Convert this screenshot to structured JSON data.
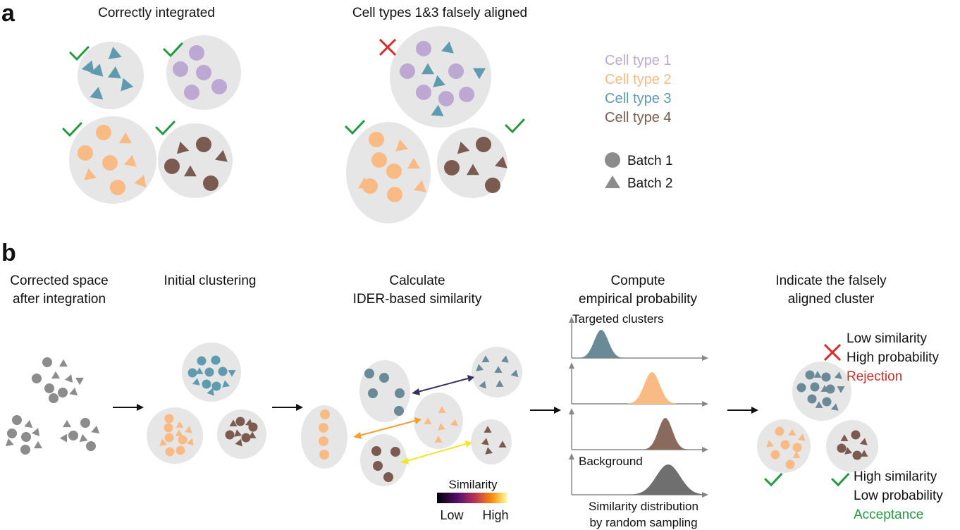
{
  "colors": {
    "cell_type_1": "#bca8d2",
    "cell_type_2": "#f9bb83",
    "cell_type_3": "#5e9bb0",
    "cell_type_4": "#7b5a50",
    "gray_cell": "#8c8c8c",
    "cluster_bg": "#e6e6e6",
    "check": "#239a3f",
    "cross": "#d72a2a",
    "dist_blue": "#6a8a98",
    "dist_orange": "#f9bb83",
    "dist_brown": "#8a6a5c",
    "dist_gray": "#6f6f6f",
    "arrow_dark": "#3a3060",
    "arrow_orange": "#f0a030",
    "arrow_yellow": "#f2e52a"
  },
  "panel_a": {
    "letter": "a",
    "left_title": "Correctly integrated",
    "right_title": "Cell types 1&3 falsely aligned",
    "legend": {
      "cell_types": [
        "Cell type 1",
        "Cell type 2",
        "Cell type 3",
        "Cell type 4"
      ],
      "batch_1": "Batch 1",
      "batch_2": "Batch 2"
    }
  },
  "panel_b": {
    "letter": "b",
    "step1_title": [
      "Corrected space",
      "after integration"
    ],
    "step2_title": "Initial clustering",
    "step3_title": [
      "Calculate",
      "IDER-based similarity"
    ],
    "step4_title": [
      "Compute",
      "empirical probability"
    ],
    "step5_title": [
      "Indicate the falsely",
      "aligned cluster"
    ],
    "targeted_label": "Targeted clusters",
    "background_label": "Background",
    "dist_caption": [
      "Similarity distribution",
      "by random sampling"
    ],
    "colorbar": {
      "title": "Similarity",
      "low": "Low",
      "high": "High"
    },
    "reject": {
      "line1": "Low similarity",
      "line2": "High probability",
      "verdict": "Rejection"
    },
    "accept": {
      "line1": "High similarity",
      "line2": "Low probability",
      "verdict": "Acceptance"
    }
  }
}
